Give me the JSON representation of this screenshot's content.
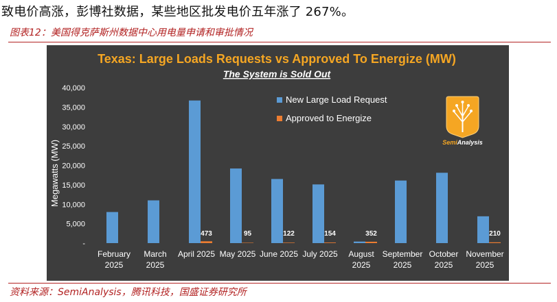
{
  "page": {
    "top_text": "致电价高涨，彭博社数据，某些地区批发电价五年涨了 267%。",
    "caption": "图表12：美国得克萨斯州数据中心用电量申请和审批情况",
    "source": "资料来源：SemiAnalysis，腾讯科技，国盛证券研究所"
  },
  "logo": {
    "text_semi": "Semi",
    "text_analysis": "Analysis"
  },
  "colors": {
    "panel_bg": "#3d3d3d",
    "title": "#f5a623",
    "request": "#5b9bd5",
    "approved": "#ed7d31",
    "caption": "#b22222"
  },
  "chart_data": {
    "type": "bar",
    "title": "Texas: Large Loads Requests vs Approved To Energize (MW)",
    "subtitle": "The System is Sold Out",
    "ylabel": "Megawatts (MW)",
    "xlabel": "",
    "ylim": [
      0,
      40000
    ],
    "yticks": [
      "-",
      "5,000",
      "10,000",
      "15,000",
      "20,000",
      "25,000",
      "30,000",
      "35,000",
      "40,000"
    ],
    "categories": [
      [
        "February",
        "2025"
      ],
      [
        "March",
        "2025"
      ],
      [
        "April 2025"
      ],
      [
        "May 2025"
      ],
      [
        "June 2025"
      ],
      [
        "July 2025"
      ],
      [
        "August",
        "2025"
      ],
      [
        "September",
        "2025"
      ],
      [
        "October",
        "2025"
      ],
      [
        "November",
        "2025"
      ]
    ],
    "series": [
      {
        "name": "New Large Load Request",
        "values": [
          8000,
          11000,
          36700,
          19200,
          16500,
          15100,
          400,
          16100,
          18100,
          6900
        ]
      },
      {
        "name": "Approved to Energize",
        "values": [
          0,
          0,
          473,
          95,
          122,
          154,
          352,
          0,
          0,
          210
        ]
      }
    ],
    "data_labels": [
      "",
      "",
      "473",
      "95",
      "122",
      "154",
      "352",
      "",
      "",
      "210"
    ],
    "legend_position": "top-right",
    "grid": false
  }
}
